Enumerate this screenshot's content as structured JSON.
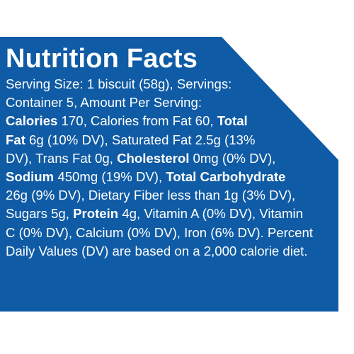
{
  "panel": {
    "background_color": "#0f5ba5",
    "text_color": "#ffffff"
  },
  "title": "Nutrition Facts",
  "lines": [
    [
      {
        "t": "Serving Size: 1 biscuit (58g), Servings:"
      }
    ],
    [
      {
        "t": "Container 5, Amount Per Serving:"
      }
    ],
    [
      {
        "t": "Calories",
        "b": true
      },
      {
        "t": " 170, Calories from Fat 60, "
      },
      {
        "t": "Total",
        "b": true
      }
    ],
    [
      {
        "t": "Fat",
        "b": true
      },
      {
        "t": " 6g (10% DV), Saturated Fat 2.5g (13%"
      }
    ],
    [
      {
        "t": "DV), Trans Fat 0g, "
      },
      {
        "t": "Cholesterol",
        "b": true
      },
      {
        "t": " 0mg (0% DV),"
      }
    ],
    [
      {
        "t": "Sodium",
        "b": true
      },
      {
        "t": " 450mg (19% DV), "
      },
      {
        "t": "Total Carbohydrate",
        "b": true
      }
    ],
    [
      {
        "t": "26g (9% DV), Dietary Fiber less than 1g (3% DV),"
      }
    ],
    [
      {
        "t": "Sugars 5g, "
      },
      {
        "t": "Protein",
        "b": true
      },
      {
        "t": " 4g, Vitamin A (0% DV), Vitamin"
      }
    ],
    [
      {
        "t": "C (0% DV), Calcium (0% DV), Iron (6% DV). Percent"
      }
    ],
    [
      {
        "t": "Daily Values (DV) are based on a 2,000 calorie diet."
      }
    ]
  ]
}
